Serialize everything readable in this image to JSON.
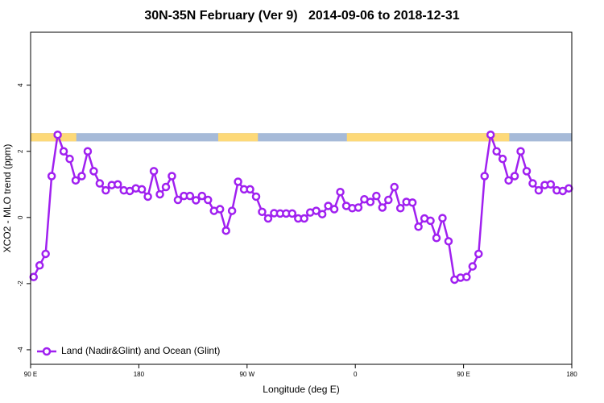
{
  "chart_data": {
    "type": "line",
    "title": "30N-35N February (Ver 9)   2014-09-06 to 2018-12-31",
    "xlabel": "Longitude (deg E)",
    "ylabel": "XCO2 - MLO trend (ppm)",
    "xlim": [
      90,
      540
    ],
    "ylim": [
      -4.44,
      5.6
    ],
    "xticks": [
      {
        "value": 90,
        "label": "90 E"
      },
      180,
      {
        "value": 270,
        "label": "90 W"
      },
      {
        "value": 360,
        "label": "0"
      },
      {
        "value": 450,
        "label": "90 E"
      },
      {
        "value": 540,
        "label": "180"
      }
    ],
    "yticks": [
      -4,
      -2,
      0,
      2,
      4
    ],
    "legend": "bottom-left",
    "band": {
      "ylim": [
        2.3,
        2.55
      ],
      "ocean_color": "#a6bad8",
      "land_color": "#fdd978",
      "land": [
        [
          90,
          128
        ],
        [
          246,
          279
        ],
        [
          353,
          488
        ]
      ]
    },
    "x": [
      92.5,
      97.5,
      102.5,
      107.5,
      112.5,
      117.5,
      122.5,
      127.5,
      132.5,
      137.5,
      142.5,
      147.5,
      152.5,
      157.5,
      162.5,
      167.5,
      172.5,
      177.5,
      182.5,
      187.5,
      192.5,
      197.5,
      202.5,
      207.5,
      212.5,
      217.5,
      222.5,
      227.5,
      232.5,
      237.5,
      242.5,
      247.5,
      252.5,
      257.5,
      262.5,
      267.5,
      272.5,
      277.5,
      282.5,
      287.5,
      292.5,
      297.5,
      302.5,
      307.5,
      312.5,
      317.5,
      322.5,
      327.5,
      332.5,
      337.5,
      342.5,
      347.5,
      352.5,
      357.5,
      362.5,
      367.5,
      372.5,
      377.5,
      382.5,
      387.5,
      392.5,
      397.5,
      402.5,
      407.5,
      412.5,
      417.5,
      422.5,
      427.5,
      432.5,
      437.5,
      442.5,
      447.5,
      452.5,
      457.5,
      462.5,
      467.5,
      472.5,
      477.5,
      482.5,
      487.5,
      492.5,
      497.5,
      502.5,
      507.5,
      512.5,
      517.5,
      522.5,
      527.5,
      532.5,
      537.5
    ],
    "series": [
      {
        "name": "Land (Nadir&Glint) and Ocean (Glint)",
        "color": "#a020f0",
        "values": [
          -1.8,
          -1.45,
          -1.1,
          1.25,
          2.5,
          2.0,
          1.77,
          1.12,
          1.25,
          2.0,
          1.4,
          1.03,
          0.82,
          0.98,
          1.0,
          0.82,
          0.8,
          0.88,
          0.85,
          0.63,
          1.4,
          0.7,
          0.92,
          1.25,
          0.53,
          0.65,
          0.65,
          0.52,
          0.65,
          0.53,
          0.2,
          0.25,
          -0.4,
          0.2,
          1.08,
          0.85,
          0.85,
          0.63,
          0.17,
          -0.03,
          0.13,
          0.12,
          0.12,
          0.12,
          -0.03,
          -0.03,
          0.15,
          0.2,
          0.1,
          0.35,
          0.25,
          0.77,
          0.35,
          0.28,
          0.3,
          0.55,
          0.47,
          0.65,
          0.3,
          0.53,
          0.92,
          0.28,
          0.47,
          0.45,
          -0.28,
          -0.03,
          -0.1,
          -0.62,
          -0.02,
          -0.72,
          -1.88,
          -1.82,
          -1.8,
          -1.48,
          -1.1,
          1.25,
          2.5,
          2.0,
          1.77,
          1.12,
          1.25,
          2.0,
          1.4,
          1.03,
          0.82,
          0.98,
          1.0,
          0.82,
          0.8,
          0.88
        ]
      }
    ]
  }
}
